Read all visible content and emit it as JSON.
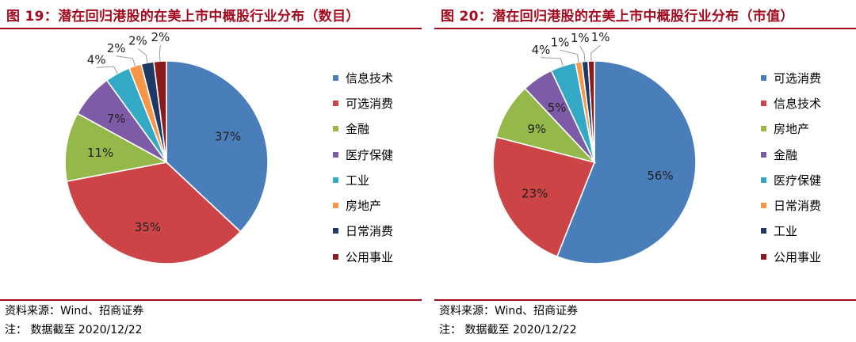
{
  "source": "资料来源：Wind、招商证券",
  "note": "注：  数据截至 2020/12/22",
  "chart_data": [
    {
      "type": "pie",
      "title": "图 19：潜在回归港股的在美上市中概股行业分布（数目）",
      "labels": [
        "信息技术",
        "可选消费",
        "金融",
        "医疗保健",
        "工业",
        "房地产",
        "日常消费",
        "公用事业"
      ],
      "values": [
        37,
        35,
        11,
        7,
        4,
        2,
        2,
        2
      ],
      "value_labels": [
        "37%",
        "35%",
        "11%",
        "7%",
        "4%",
        "2%",
        "2%",
        "2%"
      ],
      "colors": [
        "#4a7ebb",
        "#cc4445",
        "#95b84a",
        "#7d5ba6",
        "#33a9c6",
        "#f79646",
        "#1f3864",
        "#8b1a1a"
      ],
      "legend_position": "right"
    },
    {
      "type": "pie",
      "title": "图 20：潜在回归港股的在美上市中概股行业分布（市值）",
      "labels": [
        "可选消费",
        "信息技术",
        "房地产",
        "金融",
        "医疗保健",
        "日常消费",
        "工业",
        "公用事业"
      ],
      "values": [
        56,
        23,
        9,
        5,
        4,
        1,
        1,
        1
      ],
      "value_labels": [
        "56%",
        "23%",
        "9%",
        "5%",
        "4%",
        "1%",
        "1%",
        "1%"
      ],
      "colors": [
        "#4a7ebb",
        "#cc4445",
        "#95b84a",
        "#7d5ba6",
        "#33a9c6",
        "#f79646",
        "#1f3864",
        "#8b1a1a"
      ],
      "legend_position": "right"
    }
  ]
}
